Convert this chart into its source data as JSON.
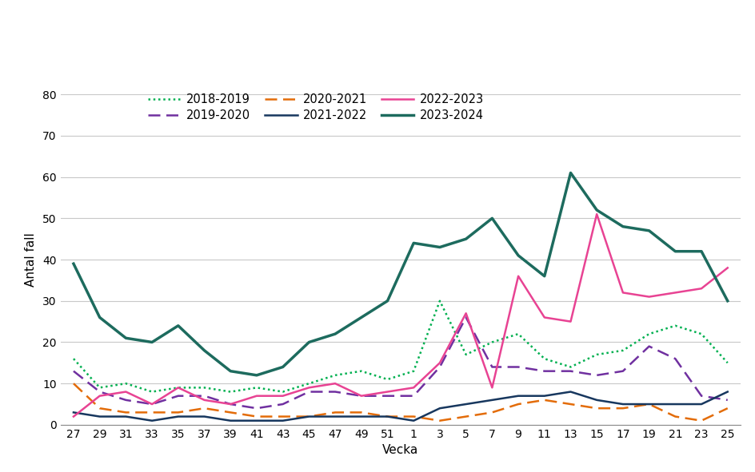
{
  "title": "",
  "ylabel": "Antal fall",
  "xlabel": "Vecka",
  "xlim_labels": [
    "27",
    "29",
    "31",
    "33",
    "35",
    "37",
    "39",
    "41",
    "43",
    "45",
    "47",
    "49",
    "51",
    "1",
    "3",
    "5",
    "7",
    "9",
    "11",
    "13",
    "15",
    "17",
    "19",
    "21",
    "23",
    "25"
  ],
  "ylim": [
    0,
    80
  ],
  "yticks": [
    0,
    10,
    20,
    30,
    40,
    50,
    60,
    70,
    80
  ],
  "background_color": "#ffffff",
  "grid_color": "#c8c8c8",
  "series": [
    {
      "label": "2018-2019",
      "color": "#00b050",
      "linestyle": "dotted",
      "linewidth": 1.8,
      "data": [
        16,
        9,
        10,
        8,
        9,
        9,
        8,
        9,
        8,
        10,
        12,
        13,
        11,
        13,
        30,
        17,
        20,
        22,
        16,
        14,
        17,
        18,
        22,
        24,
        22,
        15
      ]
    },
    {
      "label": "2019-2020",
      "color": "#7030a0",
      "linestyle": "dashed",
      "linewidth": 1.8,
      "data": [
        13,
        8,
        6,
        5,
        7,
        7,
        5,
        4,
        5,
        8,
        8,
        7,
        7,
        7,
        14,
        26,
        14,
        14,
        13,
        13,
        12,
        13,
        19,
        16,
        7,
        6
      ]
    },
    {
      "label": "2020-2021",
      "color": "#e36c09",
      "linestyle": "dashed",
      "linewidth": 1.8,
      "data": [
        10,
        4,
        3,
        3,
        3,
        4,
        3,
        2,
        2,
        2,
        3,
        3,
        2,
        2,
        1,
        2,
        3,
        5,
        6,
        5,
        4,
        4,
        5,
        2,
        1,
        4
      ]
    },
    {
      "label": "2021-2022",
      "color": "#17375e",
      "linestyle": "solid",
      "linewidth": 1.8,
      "data": [
        3,
        2,
        2,
        1,
        2,
        2,
        1,
        1,
        1,
        2,
        2,
        2,
        2,
        1,
        4,
        5,
        6,
        7,
        7,
        8,
        6,
        5,
        5,
        5,
        5,
        8
      ]
    },
    {
      "label": "2022-2023",
      "color": "#e84393",
      "linestyle": "solid",
      "linewidth": 1.8,
      "data": [
        2,
        7,
        8,
        5,
        9,
        6,
        5,
        7,
        7,
        9,
        10,
        7,
        8,
        9,
        15,
        27,
        9,
        36,
        26,
        25,
        51,
        32,
        31,
        32,
        33,
        38
      ]
    },
    {
      "label": "2023-2024",
      "color": "#1d6b5e",
      "linestyle": "solid",
      "linewidth": 2.5,
      "data": [
        39,
        26,
        21,
        20,
        24,
        18,
        13,
        12,
        14,
        20,
        22,
        26,
        30,
        44,
        43,
        45,
        50,
        41,
        36,
        61,
        52,
        48,
        47,
        42,
        42,
        30
      ]
    }
  ],
  "legend_order": [
    0,
    1,
    2,
    3,
    4,
    5
  ]
}
